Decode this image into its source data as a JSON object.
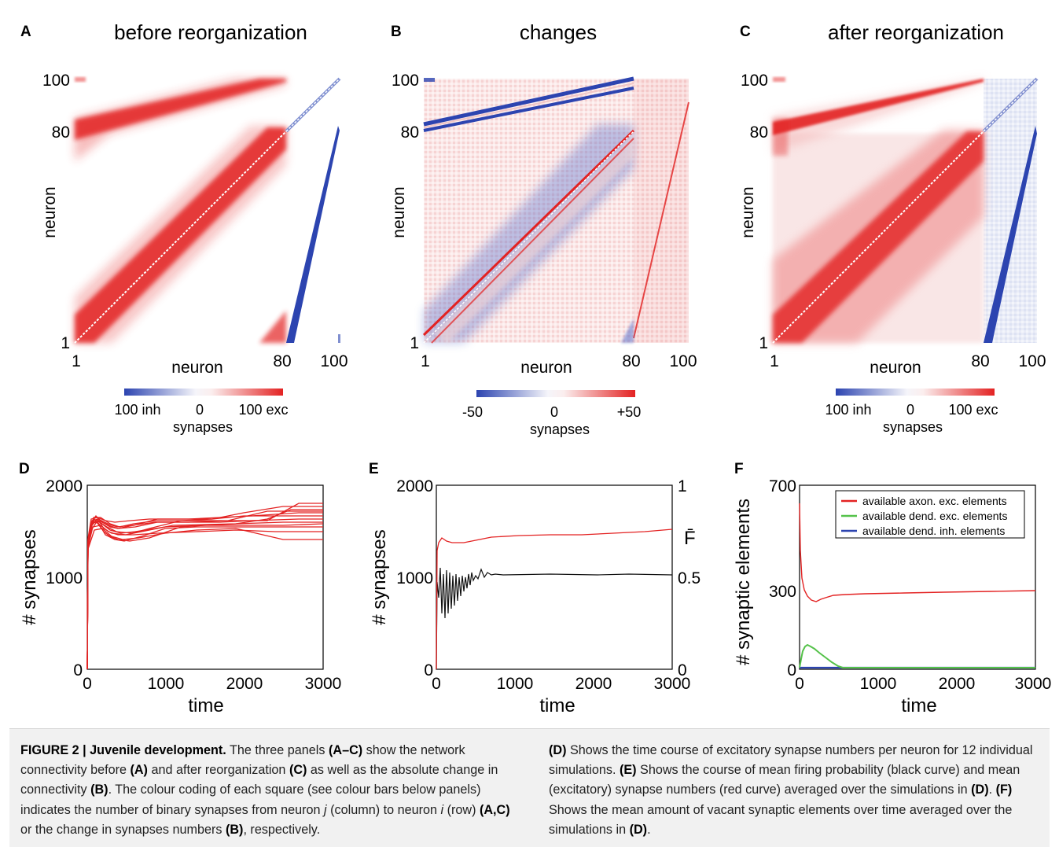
{
  "figure": {
    "panel_a": {
      "letter": "A",
      "title": "before reorganization",
      "y_label": "neuron",
      "x_label": "neuron",
      "ticks_y": [
        "100",
        "80",
        "1"
      ],
      "ticks_x": [
        "1",
        "80",
        "100"
      ],
      "colorbar": {
        "left": "100 inh",
        "mid": "0",
        "right": "100 exc",
        "label": "synapses"
      }
    },
    "panel_b": {
      "letter": "B",
      "title": "changes",
      "y_label": "neuron",
      "x_label": "neuron",
      "ticks_y": [
        "100",
        "80",
        "1"
      ],
      "ticks_x": [
        "1",
        "80",
        "100"
      ],
      "colorbar": {
        "left": "-50",
        "mid": "0",
        "right": "+50",
        "label": "synapses"
      }
    },
    "panel_c": {
      "letter": "C",
      "title": "after reorganization",
      "y_label": "neuron",
      "x_label": "neuron",
      "ticks_y": [
        "100",
        "80",
        "1"
      ],
      "ticks_x": [
        "1",
        "80",
        "100"
      ],
      "colorbar": {
        "left": "100 inh",
        "mid": "0",
        "right": "100 exc",
        "label": "synapses"
      }
    },
    "panel_d": {
      "letter": "D",
      "y_label": "# synapses",
      "x_label": "time",
      "y_ticks": [
        "2000",
        "1000",
        "0"
      ],
      "x_ticks": [
        "0",
        "1000",
        "2000",
        "3000"
      ]
    },
    "panel_e": {
      "letter": "E",
      "y_label": "# synapses",
      "x_label": "time",
      "right_label": "F̄",
      "y_ticks": [
        "2000",
        "1000",
        "0"
      ],
      "right_ticks": [
        "1",
        "0.5",
        "0"
      ],
      "x_ticks": [
        "0",
        "1000",
        "2000",
        "3000"
      ]
    },
    "panel_f": {
      "letter": "F",
      "y_label": "# synaptic elements",
      "x_label": "time",
      "y_ticks": [
        "700",
        "300",
        "0"
      ],
      "x_ticks": [
        "0",
        "1000",
        "2000",
        "3000"
      ],
      "legend": [
        "available axon. exc. elements",
        "available dend. exc. elements",
        "available dend. inh. elements"
      ]
    }
  },
  "caption": {
    "left": [
      {
        "t": "FIGURE 2 | Juvenile development.",
        "b": true
      },
      {
        "t": " The three panels "
      },
      {
        "t": "(A–C)",
        "b": true
      },
      {
        "t": " show the network connectivity before "
      },
      {
        "t": "(A)",
        "b": true
      },
      {
        "t": " and after reorganization "
      },
      {
        "t": "(C)",
        "b": true
      },
      {
        "t": " as well as the absolute change in connectivity "
      },
      {
        "t": "(B)",
        "b": true
      },
      {
        "t": ". The colour coding of each square (see colour bars below panels) indicates the number of binary synapses from neuron "
      },
      {
        "t": "j",
        "i": true
      },
      {
        "t": " (column) to neuron "
      },
      {
        "t": "i",
        "i": true
      },
      {
        "t": " (row) "
      },
      {
        "t": "(A,C)",
        "b": true
      },
      {
        "t": " or the change in synapses numbers "
      },
      {
        "t": "(B)",
        "b": true
      },
      {
        "t": ", respectively."
      }
    ],
    "right": [
      {
        "t": "(D)",
        "b": true
      },
      {
        "t": " Shows the time course of excitatory synapse numbers per neuron for 12 individual simulations. "
      },
      {
        "t": "(E)",
        "b": true
      },
      {
        "t": " Shows the course of mean firing probability (black curve) and mean (excitatory) synapse numbers (red curve) averaged over the simulations in "
      },
      {
        "t": "(D)",
        "b": true
      },
      {
        "t": ". "
      },
      {
        "t": "(F)",
        "b": true
      },
      {
        "t": " Shows the mean amount of vacant synaptic elements over time averaged over the simulations in "
      },
      {
        "t": "(D)",
        "b": true
      },
      {
        "t": "."
      }
    ]
  },
  "colors": {
    "exc": "#e32222",
    "inh": "#2c44b0",
    "green": "#55c24a",
    "black": "#111111",
    "diag": "#ffffff"
  }
}
